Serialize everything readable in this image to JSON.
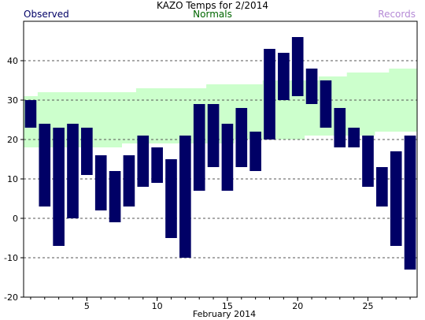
{
  "chart_data": {
    "type": "bar",
    "title": "KAZO Temps for  2/2014",
    "xlabel": "February 2014",
    "ylabel": "",
    "legend": [
      {
        "name": "Observed",
        "color": "#000066"
      },
      {
        "name": "Normals",
        "color": "#006600"
      },
      {
        "name": "Records",
        "color": "#b58ad6"
      }
    ],
    "ylim": [
      -20,
      50
    ],
    "xlim": [
      0.5,
      28.5
    ],
    "yticks": [
      -20,
      -10,
      0,
      10,
      20,
      30,
      40
    ],
    "xticks": [
      5,
      10,
      15,
      20,
      25
    ],
    "grid": true,
    "days": [
      1,
      2,
      3,
      4,
      5,
      6,
      7,
      8,
      9,
      10,
      11,
      12,
      13,
      14,
      15,
      16,
      17,
      18,
      19,
      20,
      21,
      22,
      23,
      24,
      25,
      26,
      27,
      28
    ],
    "observed_high": [
      30,
      24,
      23,
      24,
      23,
      16,
      12,
      16,
      21,
      18,
      15,
      21,
      29,
      29,
      24,
      28,
      22,
      43,
      42,
      46,
      38,
      35,
      28,
      23,
      21,
      13,
      17,
      21
    ],
    "observed_low": [
      23,
      3,
      -7,
      0,
      11,
      2,
      -1,
      3,
      8,
      9,
      -5,
      -10,
      7,
      13,
      7,
      13,
      12,
      20,
      30,
      31,
      29,
      23,
      18,
      18,
      8,
      3,
      -7,
      -13
    ],
    "normal_high": [
      31,
      32,
      32,
      32,
      32,
      32,
      32,
      32,
      33,
      33,
      33,
      33,
      33,
      34,
      34,
      34,
      34,
      35,
      35,
      35,
      35,
      36,
      36,
      37,
      37,
      37,
      38,
      38
    ],
    "normal_low": [
      18,
      18,
      18,
      18,
      18,
      18,
      18,
      19,
      19,
      19,
      19,
      19,
      19,
      19,
      19,
      20,
      20,
      20,
      20,
      20,
      21,
      21,
      21,
      21,
      21,
      22,
      22,
      22
    ],
    "colors": {
      "observed": "#000066",
      "normals": "#ccffcc",
      "records": "#b58ad6",
      "grid": "#555555",
      "axis": "#000000"
    }
  }
}
